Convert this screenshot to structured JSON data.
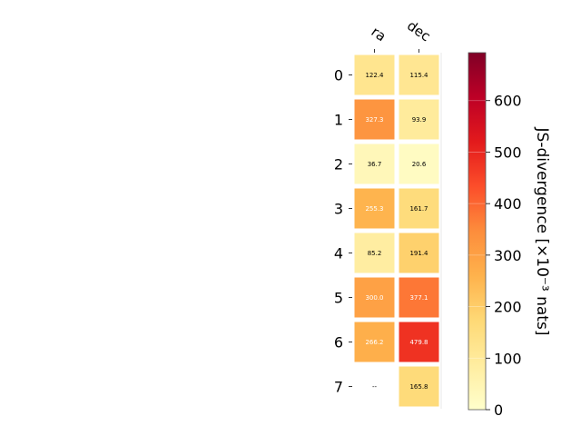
{
  "chart_data": {
    "type": "heatmap",
    "columns": [
      "ra",
      "dec"
    ],
    "rows": [
      "0",
      "1",
      "2",
      "3",
      "4",
      "5",
      "6",
      "7"
    ],
    "values": [
      [
        122.4,
        115.4
      ],
      [
        327.3,
        93.9
      ],
      [
        36.7,
        20.6
      ],
      [
        255.3,
        161.7
      ],
      [
        85.2,
        191.4
      ],
      [
        300.0,
        377.1
      ],
      [
        266.2,
        479.8
      ],
      [
        null,
        165.8
      ]
    ],
    "cell_labels": [
      [
        "122.4",
        "115.4"
      ],
      [
        "327.3",
        "93.9"
      ],
      [
        "36.7",
        "20.6"
      ],
      [
        "255.3",
        "161.7"
      ],
      [
        "85.2",
        "191.4"
      ],
      [
        "300.0",
        "377.1"
      ],
      [
        "266.2",
        "479.8"
      ],
      [
        "--",
        "165.8"
      ]
    ],
    "colormap": "YlOrRd",
    "colorbar": {
      "label": "JS-divergence [×10⁻³ nats]",
      "vmin": 0,
      "vmax": 693,
      "ticks": [
        0,
        100,
        200,
        300,
        400,
        500,
        600
      ],
      "tick_labels": [
        "0",
        "100",
        "200",
        "300",
        "400",
        "500",
        "600"
      ]
    }
  }
}
